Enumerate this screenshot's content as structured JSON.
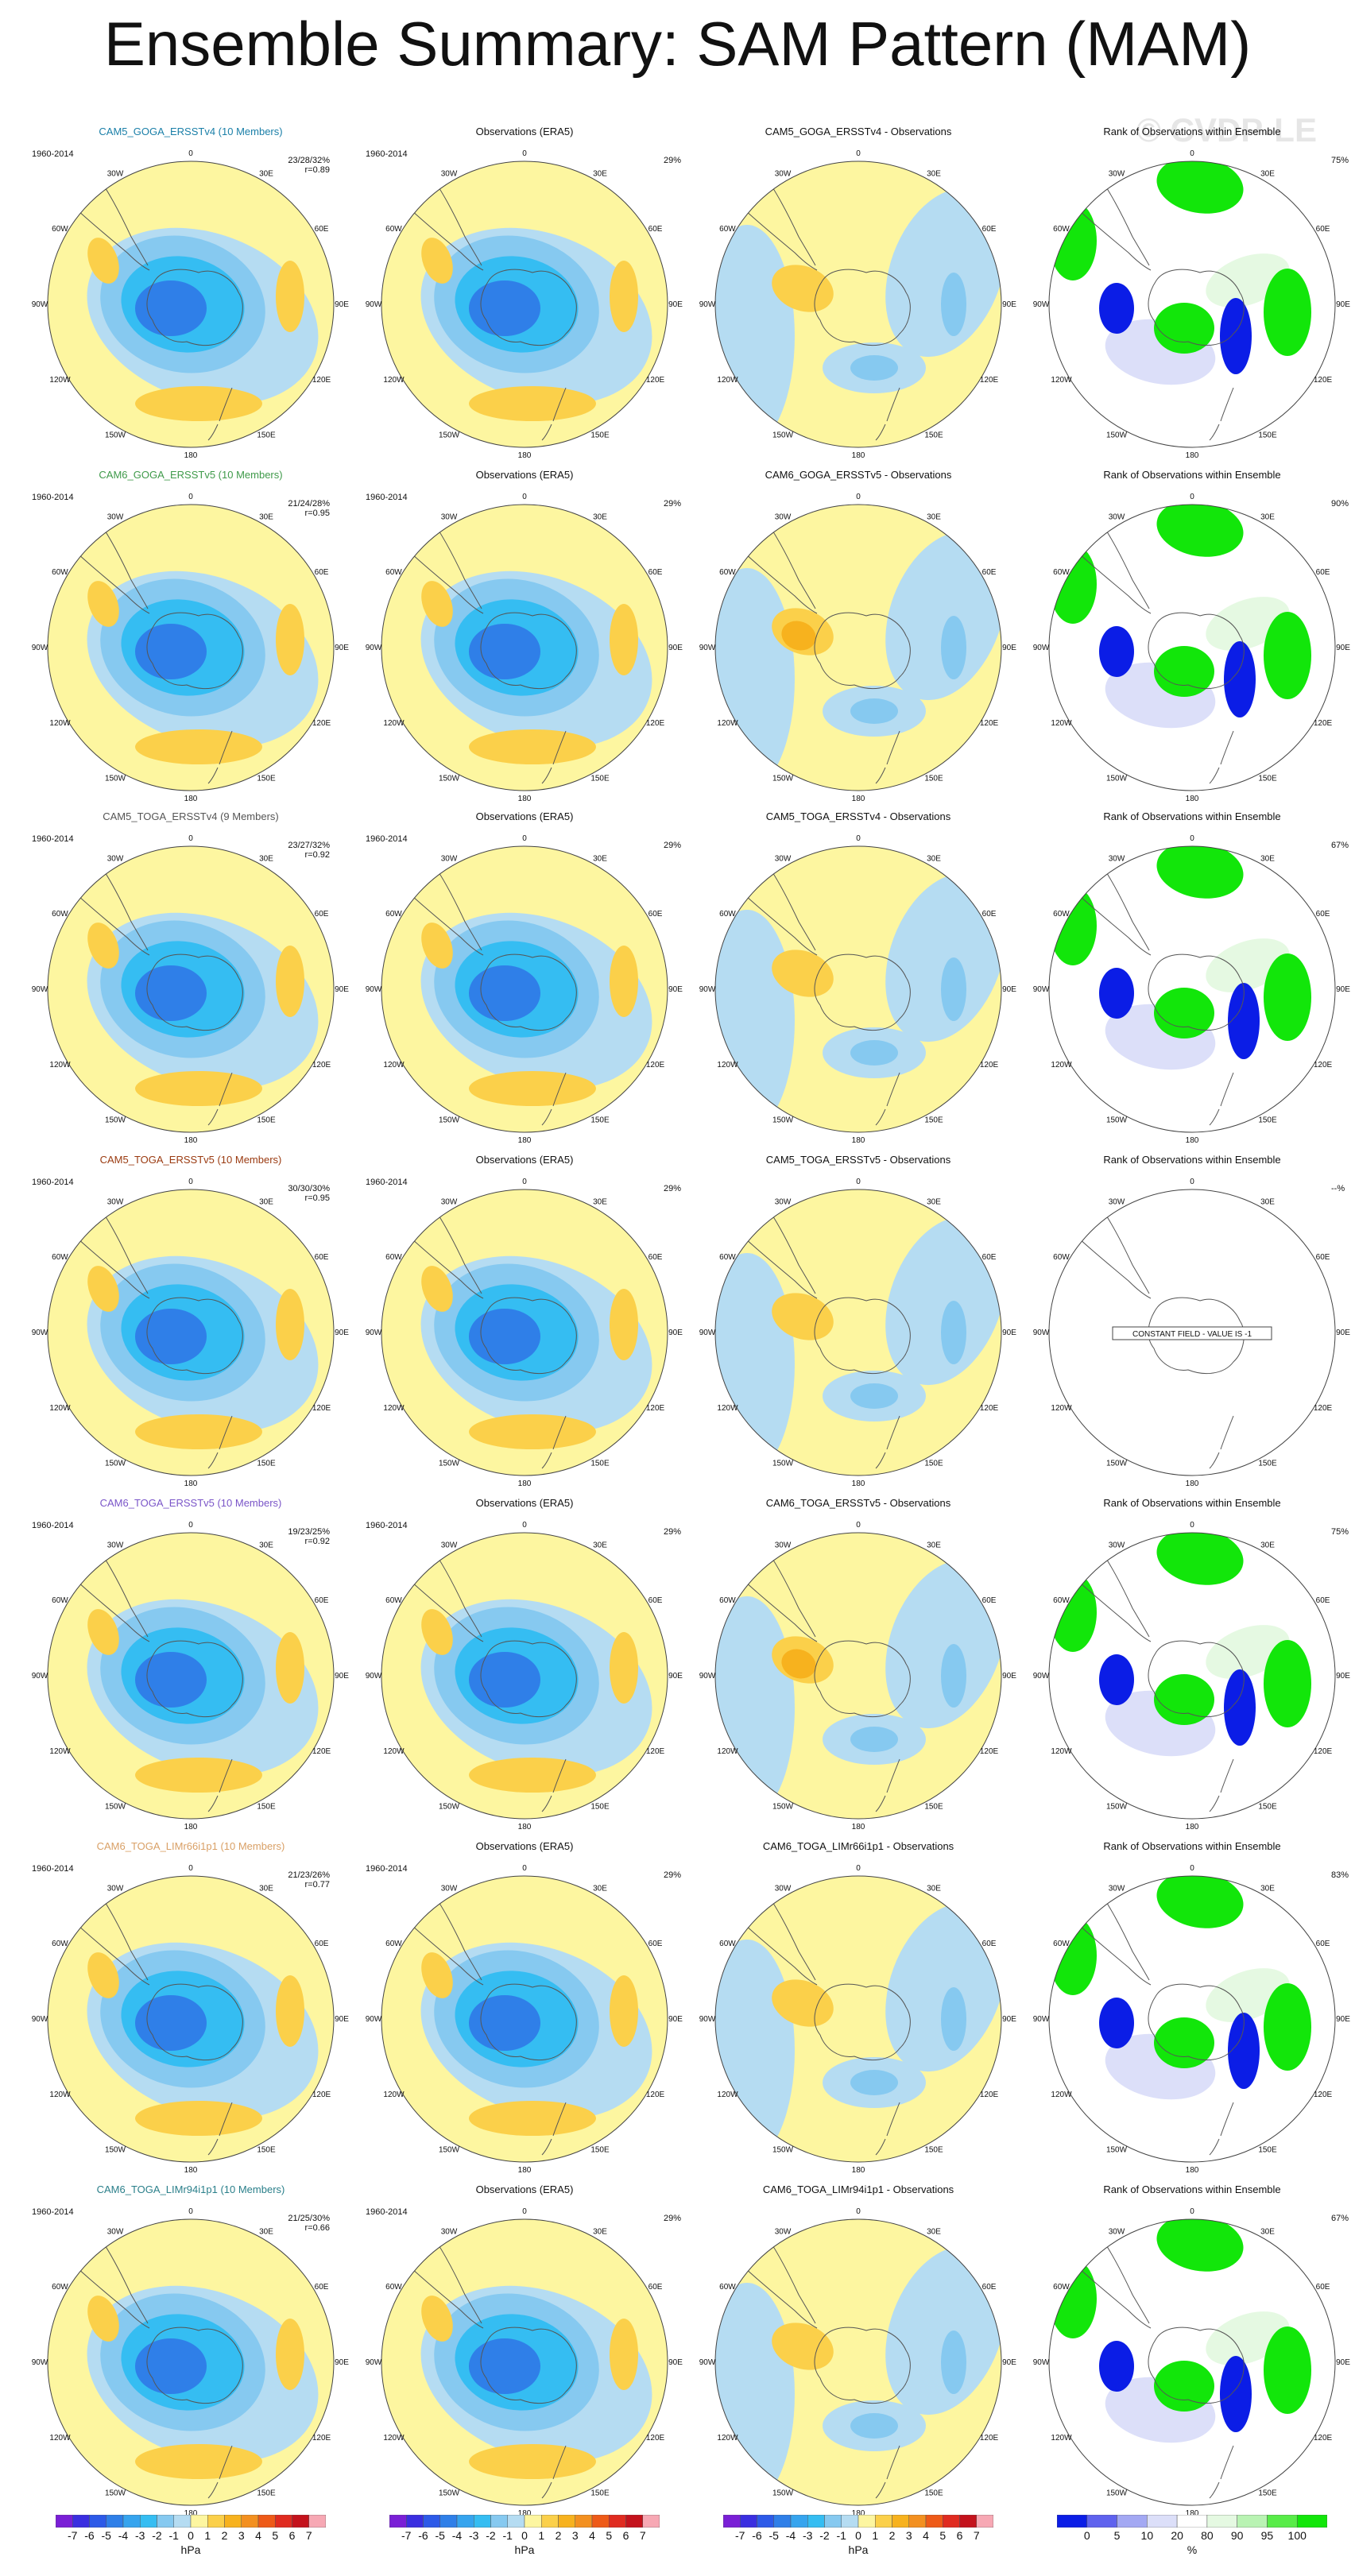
{
  "title": "Ensemble Summary: SAM Pattern (MAM)",
  "watermark": "© CVDP-LE",
  "years": "1960-2014",
  "obs_title": "Observations (ERA5)",
  "obs_pct": "29%",
  "rank_title": "Rank of Observations within Ensemble",
  "lon_labels": [
    "0",
    "30E",
    "60E",
    "90E",
    "120E",
    "150E",
    "180",
    "150W",
    "120W",
    "90W",
    "60W",
    "30W"
  ],
  "rows": [
    {
      "ens_title": "CAM5_GOGA_ERSSTv4 (10 Members)",
      "ens_color": "#1a7fa8",
      "stats1": "23/28/32%",
      "stats2": "r=0.89",
      "diff_title": "CAM5_GOGA_ERSSTv4 - Observations",
      "rank_pct": "75%"
    },
    {
      "ens_title": "CAM6_GOGA_ERSSTv5 (10 Members)",
      "ens_color": "#3f9a4a",
      "stats1": "21/24/28%",
      "stats2": "r=0.95",
      "diff_title": "CAM6_GOGA_ERSSTv5 - Observations",
      "rank_pct": "90%"
    },
    {
      "ens_title": "CAM5_TOGA_ERSSTv4 (9 Members)",
      "ens_color": "#555555",
      "stats1": "23/27/32%",
      "stats2": "r=0.92",
      "diff_title": "CAM5_TOGA_ERSSTv4 - Observations",
      "rank_pct": "67%"
    },
    {
      "ens_title": "CAM5_TOGA_ERSSTv5 (10 Members)",
      "ens_color": "#9a3a10",
      "stats1": "30/30/30%",
      "stats2": "r=0.95",
      "diff_title": "CAM5_TOGA_ERSSTv5 - Observations",
      "rank_pct": "--%",
      "rank_note": "CONSTANT FIELD - VALUE IS -1"
    },
    {
      "ens_title": "CAM6_TOGA_ERSSTv5 (10 Members)",
      "ens_color": "#7a55c8",
      "stats1": "19/23/25%",
      "stats2": "r=0.92",
      "diff_title": "CAM6_TOGA_ERSSTv5 - Observations",
      "rank_pct": "75%"
    },
    {
      "ens_title": "CAM6_TOGA_LIMr66i1p1 (10 Members)",
      "ens_color": "#d9a066",
      "stats1": "21/23/26%",
      "stats2": "r=0.77",
      "diff_title": "CAM6_TOGA_LIMr66i1p1 - Observations",
      "rank_pct": "83%"
    },
    {
      "ens_title": "CAM6_TOGA_LIMr94i1p1 (10 Members)",
      "ens_color": "#2a7f8a",
      "stats1": "21/25/30%",
      "stats2": "r=0.66",
      "diff_title": "CAM6_TOGA_LIMr94i1p1 - Observations",
      "rank_pct": "67%"
    }
  ],
  "colorbar_hpa": {
    "ticks": [
      "-7",
      "-6",
      "-5",
      "-4",
      "-3",
      "-2",
      "-1",
      "0",
      "1",
      "2",
      "3",
      "4",
      "5",
      "6",
      "7"
    ],
    "units": "hPa",
    "colors": [
      "#7a1fd6",
      "#3a2ee0",
      "#2d5ae8",
      "#2f7fe8",
      "#36a4ee",
      "#35bdf2",
      "#86c9f0",
      "#b5dcf2",
      "#fdf6a0",
      "#fbd04a",
      "#f7b21e",
      "#f39020",
      "#ee5a18",
      "#e02b20",
      "#c4121c",
      "#f7a8b4"
    ]
  },
  "colorbar_rank": {
    "ticks": [
      "0",
      "5",
      "10",
      "20",
      "80",
      "90",
      "95",
      "100"
    ],
    "units": "%",
    "colors": [
      "#0b1de6",
      "#5f62ee",
      "#a3a8f3",
      "#dcdff9",
      "#ffffff",
      "#e5f9e2",
      "#b9f3b3",
      "#58ec48",
      "#12e60a"
    ]
  },
  "colors": {
    "neg1": "#b5dcf2",
    "neg2": "#86c9f0",
    "neg3": "#35bdf2",
    "neg4": "#2f7fe8",
    "pos1": "#fdf6a0",
    "pos2": "#fbd04a",
    "pos3": "#f7b21e",
    "pos4": "#ee5a18",
    "rank_blue": "#0b1de6",
    "rank_green": "#12e60a",
    "rank_lav": "#dcdff9",
    "rank_lgreen": "#e5f9e2"
  }
}
